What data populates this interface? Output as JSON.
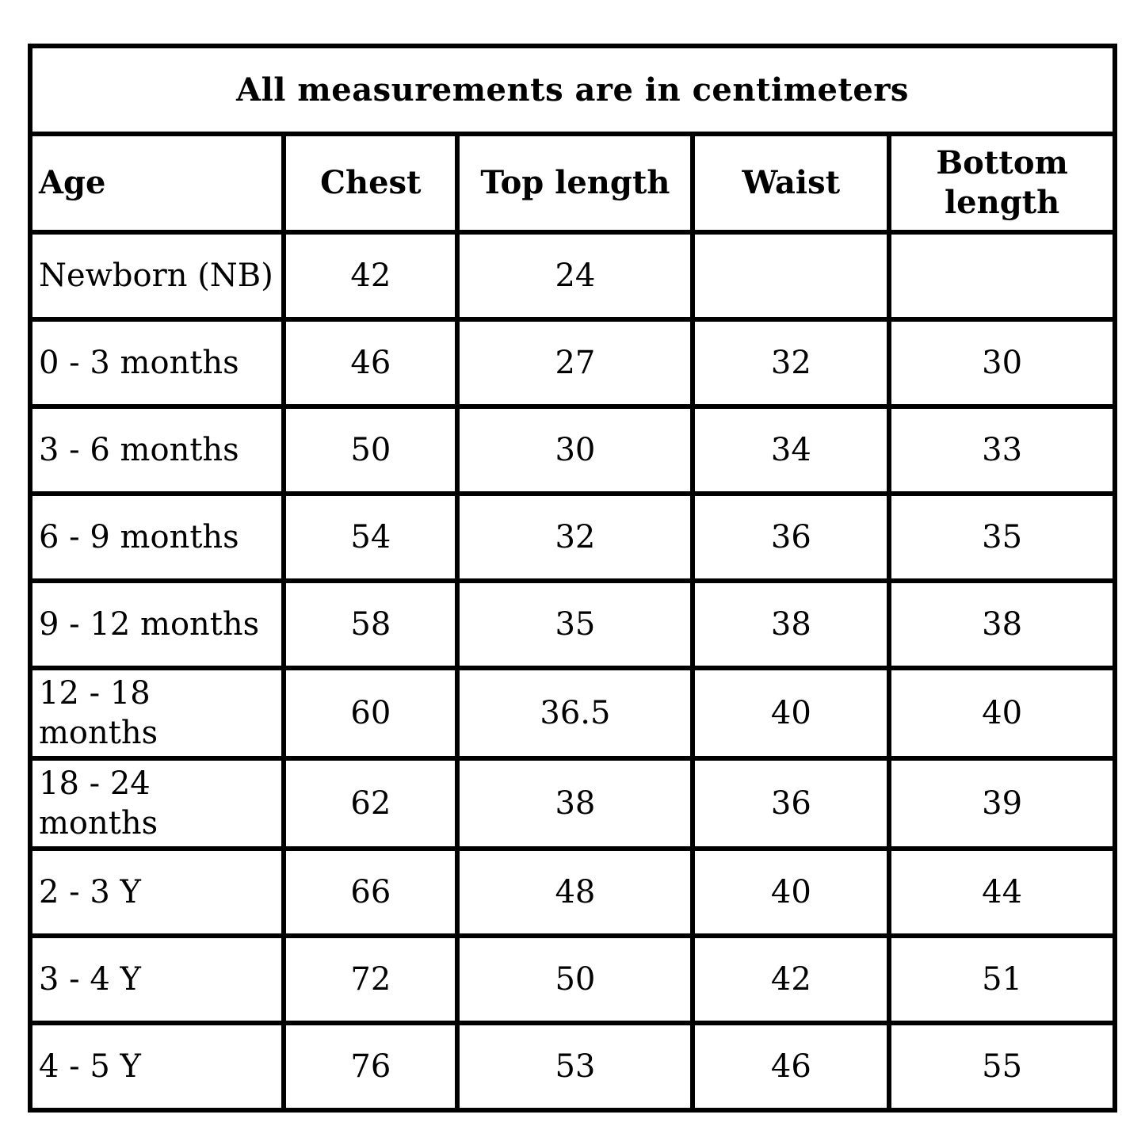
{
  "table": {
    "title": "All measurements are in centimeters",
    "columns": [
      "Age",
      "Chest",
      "Top length",
      "Waist",
      "Bottom length"
    ],
    "rows": [
      {
        "cells": [
          "Newborn (NB)",
          "42",
          "24",
          "",
          ""
        ]
      },
      {
        "cells": [
          "0 - 3 months",
          "46",
          "27",
          "32",
          "30"
        ]
      },
      {
        "cells": [
          "3 - 6 months",
          "50",
          "30",
          "34",
          "33"
        ]
      },
      {
        "cells": [
          "6 - 9 months",
          "54",
          "32",
          "36",
          "35"
        ]
      },
      {
        "cells": [
          "9 - 12 months",
          "58",
          "35",
          "38",
          "38"
        ]
      },
      {
        "cells": [
          "12 - 18 months",
          "60",
          "36.5",
          "40",
          "40"
        ]
      },
      {
        "cells": [
          "18 - 24 months",
          "62",
          "38",
          "36",
          "39"
        ]
      },
      {
        "cells": [
          "2 - 3 Y",
          "66",
          "48",
          "40",
          "44"
        ]
      },
      {
        "cells": [
          "3 - 4 Y",
          "72",
          "50",
          "42",
          "51"
        ]
      },
      {
        "cells": [
          "4 - 5 Y",
          "76",
          "53",
          "46",
          "55"
        ]
      }
    ],
    "colors": {
      "border": "#000000",
      "text": "#000000",
      "background": "#ffffff"
    }
  },
  "chart_data": {
    "type": "table",
    "title": "All measurements are in centimeters",
    "columns": [
      "Age",
      "Chest",
      "Top length",
      "Waist",
      "Bottom length"
    ],
    "rows": [
      [
        "Newborn (NB)",
        42,
        24,
        null,
        null
      ],
      [
        "0 - 3 months",
        46,
        27,
        32,
        30
      ],
      [
        "3 - 6 months",
        50,
        30,
        34,
        33
      ],
      [
        "6 - 9 months",
        54,
        32,
        36,
        35
      ],
      [
        "9 - 12 months",
        58,
        35,
        38,
        38
      ],
      [
        "12 - 18 months",
        60,
        36.5,
        40,
        40
      ],
      [
        "18 - 24 months",
        62,
        38,
        36,
        39
      ],
      [
        "2 - 3 Y",
        66,
        48,
        40,
        44
      ],
      [
        "3 - 4 Y",
        72,
        50,
        42,
        51
      ],
      [
        "4 - 5 Y",
        76,
        53,
        46,
        55
      ]
    ],
    "units": "centimeters"
  }
}
